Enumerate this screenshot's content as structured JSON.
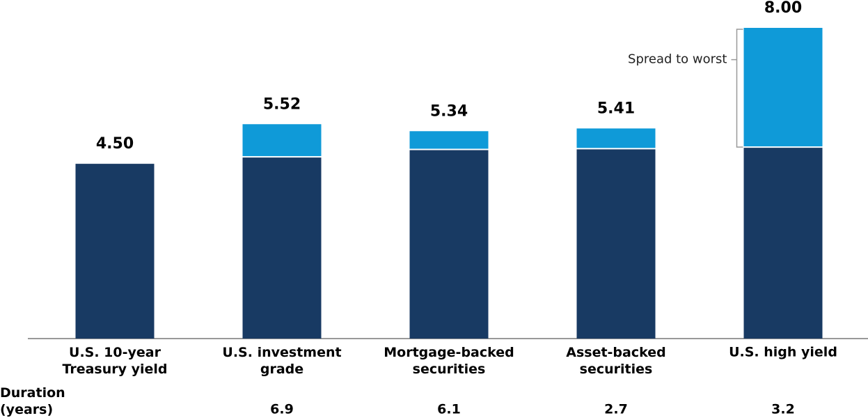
{
  "chart_data": {
    "type": "stacked-bar",
    "categories": [
      "U.S. 10-year\nTreasury yield",
      "U.S. investment\ngrade",
      "Mortgage-backed\nsecurities",
      "Asset-backed\nsecurities",
      "U.S. high yield"
    ],
    "series": [
      {
        "color": "#183a63",
        "values": [
          4.5,
          4.68,
          4.87,
          4.89,
          4.93
        ]
      },
      {
        "name": "Spread to worst",
        "color": "#0f9ad8",
        "values": [
          null,
          0.84,
          0.47,
          0.52,
          3.07
        ]
      }
    ],
    "totals": {
      "values": [
        4.5,
        5.52,
        5.34,
        5.41,
        8
      ],
      "value_labels": [
        "4.50",
        "5.52",
        "5.34",
        "5.41",
        "8.00"
      ]
    },
    "duration": {
      "label": "Duration\n(years)",
      "values": [
        null,
        6.9,
        6.1,
        2.7,
        3.2
      ]
    },
    "ylim": [
      0,
      8
    ]
  }
}
